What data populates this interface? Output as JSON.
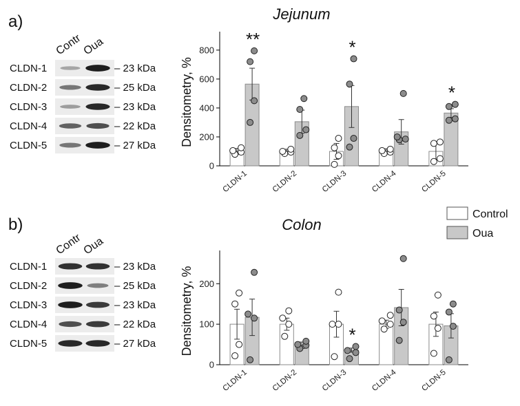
{
  "figure": {
    "legend": {
      "items": [
        {
          "label": "Control",
          "color": "#ffffff"
        },
        {
          "label": "Oua",
          "color": "#c8c8c8"
        }
      ]
    }
  },
  "panels": [
    {
      "letter": "a)",
      "blot": {
        "columns": [
          "Contr",
          "Oua"
        ],
        "bands": [
          {
            "name": "CLDN-1",
            "kda": "– 23 kDa",
            "contr": 0.25,
            "oua": 0.95
          },
          {
            "name": "CLDN-2",
            "kda": "– 25 kDa",
            "contr": 0.5,
            "oua": 0.9
          },
          {
            "name": "CLDN-3",
            "kda": "– 23 kDa",
            "contr": 0.3,
            "oua": 0.9
          },
          {
            "name": "CLDN-4",
            "kda": "– 22 kDa",
            "contr": 0.6,
            "oua": 0.7
          },
          {
            "name": "CLDN-5",
            "kda": "– 27 kDa",
            "contr": 0.5,
            "oua": 0.95
          }
        ]
      }
    },
    {
      "letter": "b)",
      "blot": {
        "columns": [
          "Contr",
          "Oua"
        ],
        "bands": [
          {
            "name": "CLDN-1",
            "kda": "– 23 kDa",
            "contr": 0.85,
            "oua": 0.85
          },
          {
            "name": "CLDN-2",
            "kda": "– 25 kDa",
            "contr": 0.95,
            "oua": 0.45
          },
          {
            "name": "CLDN-3",
            "kda": "– 23 kDa",
            "contr": 0.95,
            "oua": 0.8
          },
          {
            "name": "CLDN-4",
            "kda": "– 22 kDa",
            "contr": 0.7,
            "oua": 0.8
          },
          {
            "name": "CLDN-5",
            "kda": "– 27 kDa",
            "contr": 0.9,
            "oua": 0.9
          }
        ]
      }
    }
  ],
  "chart_data": [
    {
      "type": "bar",
      "title": "Jejunum",
      "ylabel": "Densitometry, %",
      "ylim": [
        0,
        880
      ],
      "yticks": [
        0,
        200,
        400,
        600,
        800
      ],
      "categories": [
        "CLDN-1",
        "CLDN-2",
        "CLDN-3",
        "CLDN-4",
        "CLDN-5"
      ],
      "series": [
        {
          "name": "Control",
          "values": [
            100,
            100,
            100,
            100,
            100
          ],
          "errors": [
            20,
            15,
            55,
            18,
            55
          ],
          "points": [
            [
              80,
              95,
              105,
              125
            ],
            [
              85,
              95,
              100,
              115
            ],
            [
              10,
              70,
              125,
              190
            ],
            [
              85,
              95,
              105,
              115
            ],
            [
              30,
              50,
              155,
              165
            ]
          ]
        },
        {
          "name": "Oua",
          "values": [
            565,
            305,
            410,
            235,
            365
          ],
          "errors": [
            110,
            80,
            145,
            85,
            30
          ],
          "points": [
            [
              300,
              450,
              720,
              795
            ],
            [
              210,
              250,
              390,
              465
            ],
            [
              130,
              190,
              565,
              740
            ],
            [
              180,
              185,
              200,
              500
            ],
            [
              315,
              325,
              410,
              425
            ]
          ]
        }
      ],
      "annotations": [
        {
          "category": "CLDN-1",
          "text": "**"
        },
        {
          "category": "CLDN-3",
          "text": "*"
        },
        {
          "category": "CLDN-5",
          "text": "*"
        }
      ]
    },
    {
      "type": "bar",
      "title": "Colon",
      "ylabel": "Densitometry, %",
      "ylim": [
        0,
        265
      ],
      "yticks": [
        0,
        100,
        200
      ],
      "categories": [
        "CLDN-1",
        "CLDN-2",
        "CLDN-3",
        "CLDN-4",
        "CLDN-5"
      ],
      "series": [
        {
          "name": "Control",
          "values": [
            100,
            100,
            100,
            100,
            100
          ],
          "errors": [
            37,
            15,
            32,
            10,
            30
          ],
          "points": [
            [
              22,
              50,
              150,
              177
            ],
            [
              70,
              100,
              115,
              133
            ],
            [
              20,
              100,
              100,
              179
            ],
            [
              88,
              100,
              108,
              122
            ],
            [
              28,
              90,
              120,
              172
            ]
          ]
        },
        {
          "name": "Oua",
          "values": [
            117,
            48,
            36,
            141,
            96
          ],
          "errors": [
            45,
            8,
            5,
            45,
            30
          ],
          "points": [
            [
              12,
              115,
              125,
              228
            ],
            [
              40,
              48,
              50,
              58
            ],
            [
              15,
              30,
              35,
              45
            ],
            [
              60,
              105,
              135,
              262
            ],
            [
              12,
              95,
              130,
              150
            ]
          ]
        }
      ],
      "annotations": [
        {
          "category": "CLDN-3",
          "text": "*"
        }
      ]
    }
  ]
}
